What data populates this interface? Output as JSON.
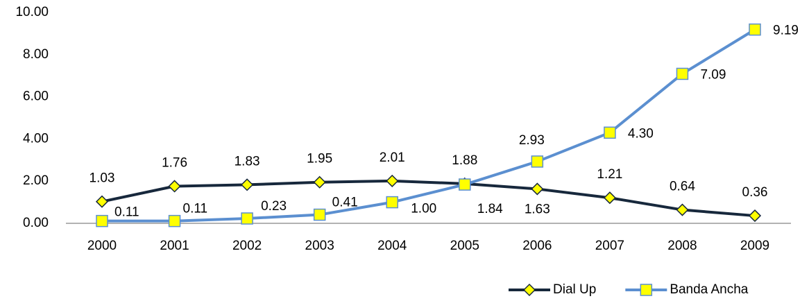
{
  "chart_data": {
    "type": "line",
    "categories": [
      "2000",
      "2001",
      "2002",
      "2003",
      "2004",
      "2005",
      "2006",
      "2007",
      "2008",
      "2009"
    ],
    "series": [
      {
        "name": "Dial Up",
        "color": "#17283c",
        "values": [
          1.03,
          1.76,
          1.83,
          1.95,
          2.01,
          1.88,
          1.63,
          1.21,
          0.64,
          0.36
        ],
        "value_labels": [
          "1.03",
          "1.76",
          "1.83",
          "1.95",
          "2.01",
          "1.88",
          "1.63",
          "1.21",
          "0.64",
          "0.36"
        ]
      },
      {
        "name": "Banda Ancha",
        "color": "#5b8fd0",
        "values": [
          0.11,
          0.11,
          0.23,
          0.41,
          1.0,
          1.84,
          2.93,
          4.3,
          7.09,
          9.19
        ],
        "value_labels": [
          "0.11",
          "0.11",
          "0.23",
          "0.41",
          "1.00",
          "1.84",
          "2.93",
          "4.30",
          "7.09",
          "9.19"
        ]
      }
    ],
    "ylim": [
      0,
      10
    ],
    "yticks": [
      {
        "value": 0,
        "label": "0.00"
      },
      {
        "value": 2,
        "label": "2.00"
      },
      {
        "value": 4,
        "label": "4.00"
      },
      {
        "value": 6,
        "label": "6.00"
      },
      {
        "value": 8,
        "label": "8.00"
      },
      {
        "value": 10,
        "label": "10.00"
      }
    ],
    "legend": "bottom"
  }
}
